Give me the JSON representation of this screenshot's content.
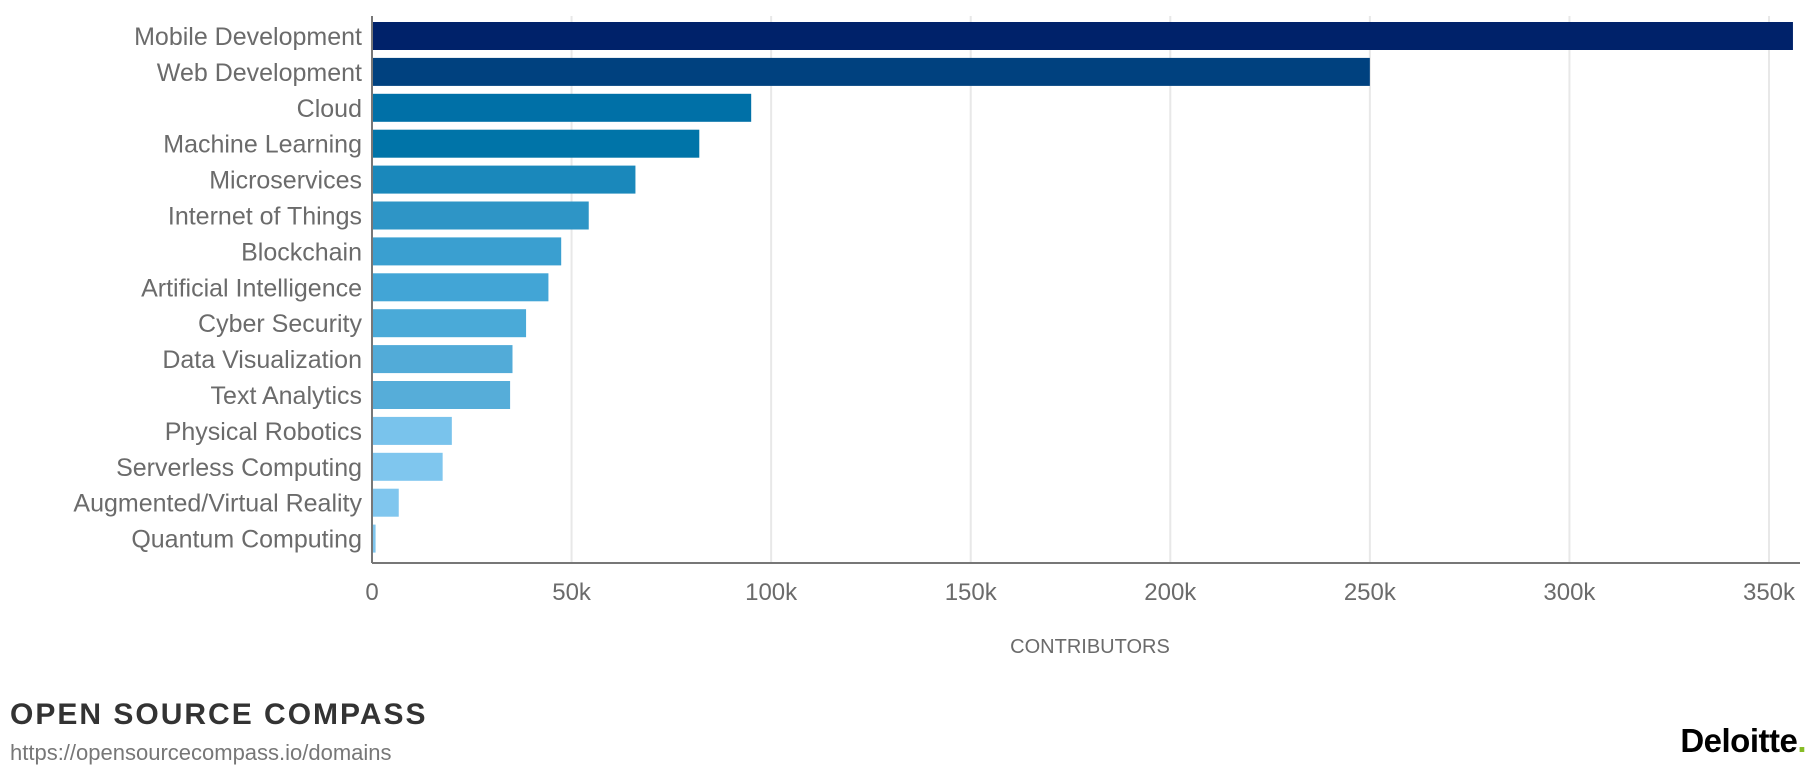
{
  "chart_data": {
    "type": "bar",
    "orientation": "horizontal",
    "categories": [
      "Mobile Development",
      "Web Development",
      "Cloud",
      "Machine Learning",
      "Microservices",
      "Internet of Things",
      "Blockchain",
      "Artificial Intelligence",
      "Cyber Security",
      "Data Visualization",
      "Text Analytics",
      "Physical Robotics",
      "Serverless Computing",
      "Augmented/Virtual Reality",
      "Quantum Computing"
    ],
    "values": [
      356000,
      250000,
      95000,
      82000,
      66000,
      54300,
      47400,
      44200,
      38600,
      35200,
      34600,
      20000,
      17700,
      6700,
      900
    ],
    "colors": [
      "#00226a",
      "#00417f",
      "#0070a7",
      "#0074a8",
      "#1a88bb",
      "#2e95c6",
      "#3a9fd0",
      "#42a5d6",
      "#4aaad8",
      "#52abd8",
      "#56add9",
      "#79c3ec",
      "#7fc6ee",
      "#80c6ee",
      "#80c6ee"
    ],
    "xlabel": "CONTRIBUTORS",
    "ylabel": "",
    "xlim": [
      0,
      360000
    ],
    "xticks": [
      0,
      50000,
      100000,
      150000,
      200000,
      250000,
      300000,
      350000
    ],
    "xtick_labels": [
      "0",
      "50k",
      "100k",
      "150k",
      "200k",
      "250k",
      "300k",
      "350k"
    ],
    "grid": "vertical"
  },
  "footer": {
    "title": "OPEN SOURCE COMPASS",
    "url": "https://opensourcecompass.io/domains",
    "logo_text": "Deloitte",
    "logo_dot": "."
  }
}
